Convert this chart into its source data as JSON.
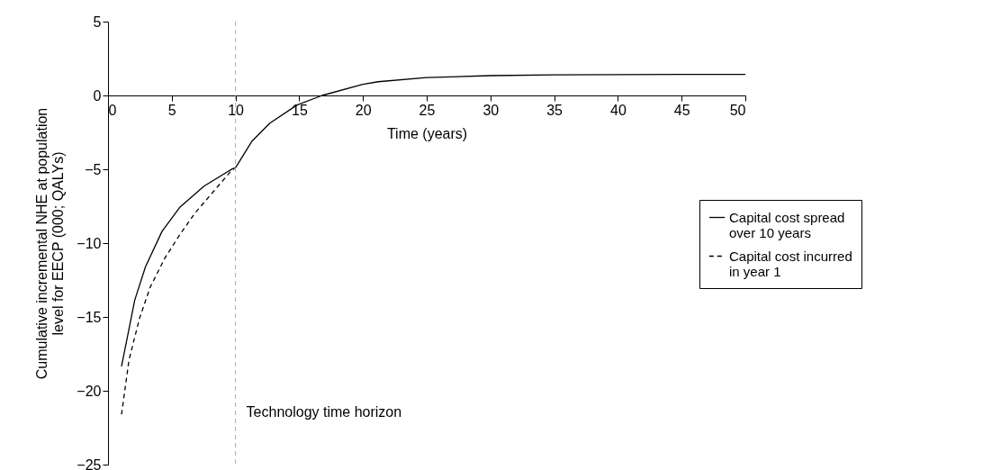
{
  "chart_data": {
    "type": "line",
    "xlabel": "Time (years)",
    "ylabel": "Cumulative incremental NHE at population level for EECP (000; QALYs)",
    "xlim": [
      0,
      50
    ],
    "xticks": [
      0,
      5,
      10,
      15,
      20,
      25,
      30,
      35,
      40,
      45,
      50
    ],
    "ylim": [
      -25,
      5
    ],
    "yticks": [
      -25,
      -20,
      -15,
      -10,
      -5,
      0,
      5
    ],
    "grid": false,
    "legend": "right",
    "series": [
      {
        "name": "Capital cost spread over 10 years",
        "color": "#000000",
        "line_style": "solid",
        "x": [
          1.06,
          2.1,
          2.94,
          4.24,
          5.65,
          7.53,
          9.77,
          10,
          11.3,
          12.7,
          14.83,
          16.8,
          20,
          21.2,
          25,
          30,
          35,
          40,
          45,
          50
        ],
        "values": [
          -18.35,
          -13.85,
          -11.6,
          -9.2,
          -7.56,
          -6.14,
          -4.96,
          -4.9,
          -3.09,
          -1.87,
          -0.65,
          0,
          0.75,
          0.93,
          1.21,
          1.34,
          1.4,
          1.41,
          1.42,
          1.42
        ]
      },
      {
        "name": "Capital cost incurred in year 1",
        "color": "#000000",
        "line_style": "dashed",
        "x": [
          1.06,
          1.65,
          2.47,
          3.3,
          4.47,
          5.65,
          6.83,
          8.24,
          9.65,
          9.9
        ],
        "values": [
          -21.6,
          -17.9,
          -15.1,
          -13.0,
          -11.0,
          -9.4,
          -7.96,
          -6.54,
          -5.12,
          -4.98
        ]
      }
    ],
    "ref_lines": [
      {
        "axis": "x",
        "value": 10,
        "label": "Technology time horizon",
        "color": "#aaaaaa",
        "line_style": "dashed"
      }
    ]
  }
}
